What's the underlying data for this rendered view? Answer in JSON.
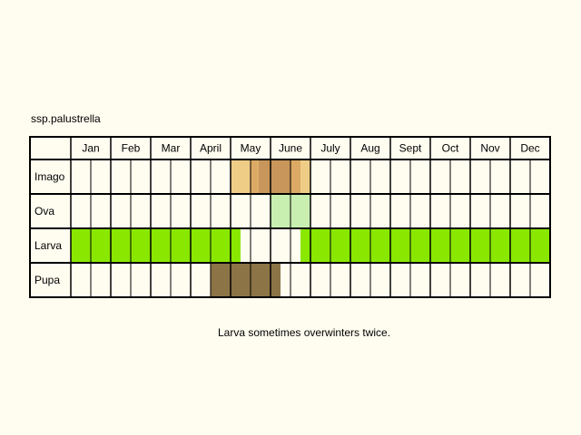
{
  "title": "ssp.palustrella",
  "note": "Larva sometimes overwinters twice.",
  "colors": {
    "background": "#fffdf0",
    "cell": "#fffdf0",
    "grid": "#000000",
    "imago_light": "#f0cd87",
    "imago_mid": "#dcaa64",
    "imago_dark": "#c8965a",
    "ova": "#c8eeb0",
    "larva": "#8ae800",
    "pupa": "#8c7446"
  },
  "months": [
    "Jan",
    "Feb",
    "Mar",
    "April",
    "May",
    "June",
    "July",
    "Aug",
    "Sept",
    "Oct",
    "Nov",
    "Dec"
  ],
  "stages": [
    {
      "key": "imago",
      "label": "Imago",
      "segments": [
        {
          "month": 5,
          "start": 0.0,
          "end": 0.5,
          "color": "imago_light"
        },
        {
          "month": 5,
          "start": 0.5,
          "end": 0.7,
          "color": "imago_mid"
        },
        {
          "month": 5,
          "start": 0.7,
          "end": 1.0,
          "color": "imago_dark"
        },
        {
          "month": 6,
          "start": 0.0,
          "end": 0.5,
          "color": "imago_dark"
        },
        {
          "month": 6,
          "start": 0.5,
          "end": 0.75,
          "color": "imago_mid"
        },
        {
          "month": 6,
          "start": 0.75,
          "end": 1.0,
          "color": "imago_light"
        }
      ]
    },
    {
      "key": "ova",
      "label": "Ova",
      "segments": [
        {
          "month": 6,
          "start": 0.0,
          "end": 1.0,
          "color": "ova"
        }
      ]
    },
    {
      "key": "larva",
      "label": "Larva",
      "segments": [
        {
          "month": 1,
          "start": 0.0,
          "end": 1.0,
          "color": "larva"
        },
        {
          "month": 2,
          "start": 0.0,
          "end": 1.0,
          "color": "larva"
        },
        {
          "month": 3,
          "start": 0.0,
          "end": 1.0,
          "color": "larva"
        },
        {
          "month": 4,
          "start": 0.0,
          "end": 1.0,
          "color": "larva"
        },
        {
          "month": 5,
          "start": 0.0,
          "end": 0.25,
          "color": "larva"
        },
        {
          "month": 6,
          "start": 0.75,
          "end": 1.0,
          "color": "larva"
        },
        {
          "month": 7,
          "start": 0.0,
          "end": 1.0,
          "color": "larva"
        },
        {
          "month": 8,
          "start": 0.0,
          "end": 1.0,
          "color": "larva"
        },
        {
          "month": 9,
          "start": 0.0,
          "end": 1.0,
          "color": "larva"
        },
        {
          "month": 10,
          "start": 0.0,
          "end": 1.0,
          "color": "larva"
        },
        {
          "month": 11,
          "start": 0.0,
          "end": 1.0,
          "color": "larva"
        },
        {
          "month": 12,
          "start": 0.0,
          "end": 1.0,
          "color": "larva"
        }
      ]
    },
    {
      "key": "pupa",
      "label": "Pupa",
      "segments": [
        {
          "month": 4,
          "start": 0.5,
          "end": 1.0,
          "color": "pupa"
        },
        {
          "month": 5,
          "start": 0.0,
          "end": 1.0,
          "color": "pupa"
        },
        {
          "month": 6,
          "start": 0.0,
          "end": 0.25,
          "color": "pupa"
        }
      ]
    }
  ]
}
